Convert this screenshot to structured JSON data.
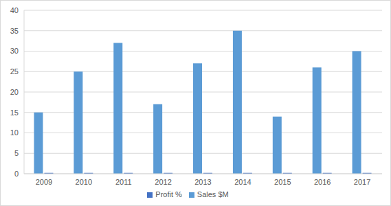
{
  "chart_data": {
    "type": "bar",
    "categories": [
      "2009",
      "2010",
      "2011",
      "2012",
      "2013",
      "2014",
      "2015",
      "2016",
      "2017"
    ],
    "series": [
      {
        "name": "Sales $M",
        "color": "#5b9bd5",
        "values": [
          15,
          25,
          32,
          17,
          27,
          35,
          14,
          26,
          30
        ]
      },
      {
        "name": "Profit %",
        "color": "#4472c4",
        "values": [
          0.2,
          0.2,
          0.2,
          0.2,
          0.2,
          0.2,
          0.2,
          0.2,
          0.2
        ]
      }
    ],
    "ylim": [
      0,
      40
    ],
    "yticks": [
      0,
      5,
      10,
      15,
      20,
      25,
      30,
      35,
      40
    ],
    "grid": true,
    "legend": "bottom"
  }
}
